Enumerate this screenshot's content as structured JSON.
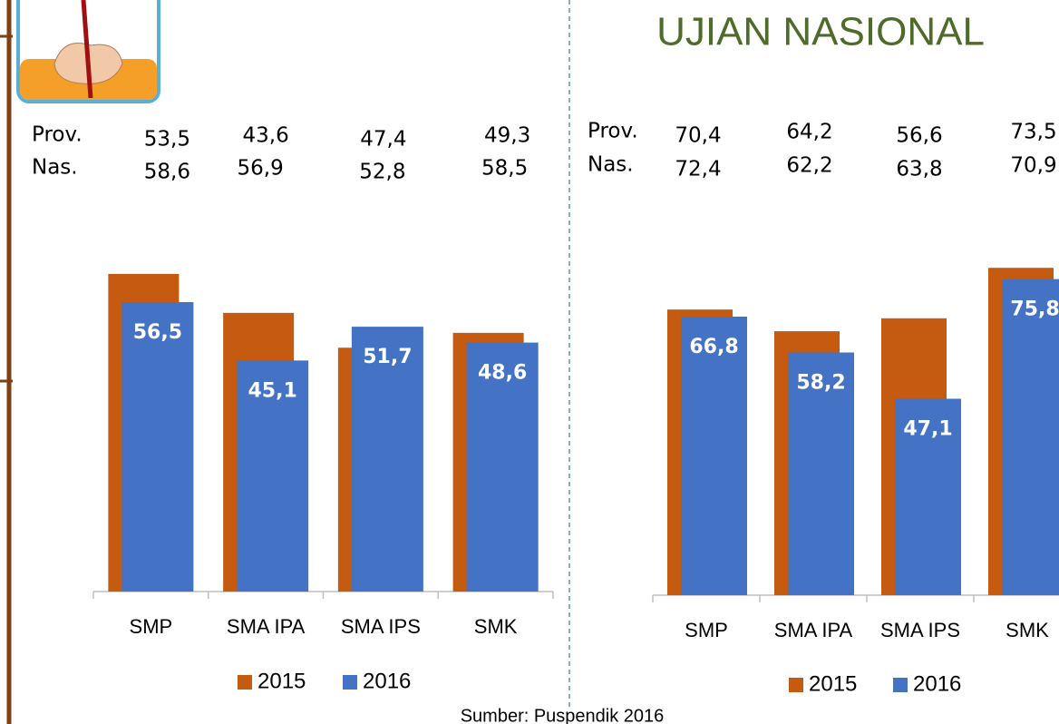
{
  "title": "UJIAN NASIONAL",
  "source": "Sumber: Puspendik 2016",
  "chart_data": [
    {
      "type": "bar",
      "categories": [
        "SMP",
        "SMA IPA",
        "SMA IPS",
        "SMK"
      ],
      "series": [
        {
          "name": "2015",
          "color": "#c55a11",
          "values": [
            62.0,
            54.4,
            47.6,
            50.5
          ]
        },
        {
          "name": "2016",
          "color": "#4472c4",
          "values": [
            56.5,
            45.1,
            51.7,
            48.6
          ],
          "value_labels": [
            "56,5",
            "45,1",
            "51,7",
            "48,6"
          ]
        }
      ],
      "ylim": [
        0,
        70
      ],
      "stats": [
        {
          "label": "Prov.",
          "values": [
            "53,5",
            "43,6",
            "47,4",
            "49,3"
          ]
        },
        {
          "label": "Nas.",
          "values": [
            "58,6",
            "56,9",
            "52,8",
            "58,5"
          ]
        }
      ]
    },
    {
      "type": "bar",
      "categories": [
        "SMP",
        "SMA IPA",
        "SMA IPS",
        "SMK"
      ],
      "series": [
        {
          "name": "2015",
          "color": "#c55a11",
          "values": [
            68.5,
            63.3,
            66.4,
            78.5
          ]
        },
        {
          "name": "2016",
          "color": "#4472c4",
          "values": [
            66.8,
            58.2,
            47.1,
            75.8
          ],
          "value_labels": [
            "66,8",
            "58,2",
            "47,1",
            "75,8"
          ]
        }
      ],
      "ylim": [
        0,
        80
      ],
      "stats": [
        {
          "label": "Prov.",
          "values": [
            "70,4",
            "64,2",
            "56,6",
            "73,5"
          ]
        },
        {
          "label": "Nas.",
          "values": [
            "72,4",
            "62,2",
            "63,8",
            "70,9"
          ]
        }
      ]
    }
  ]
}
